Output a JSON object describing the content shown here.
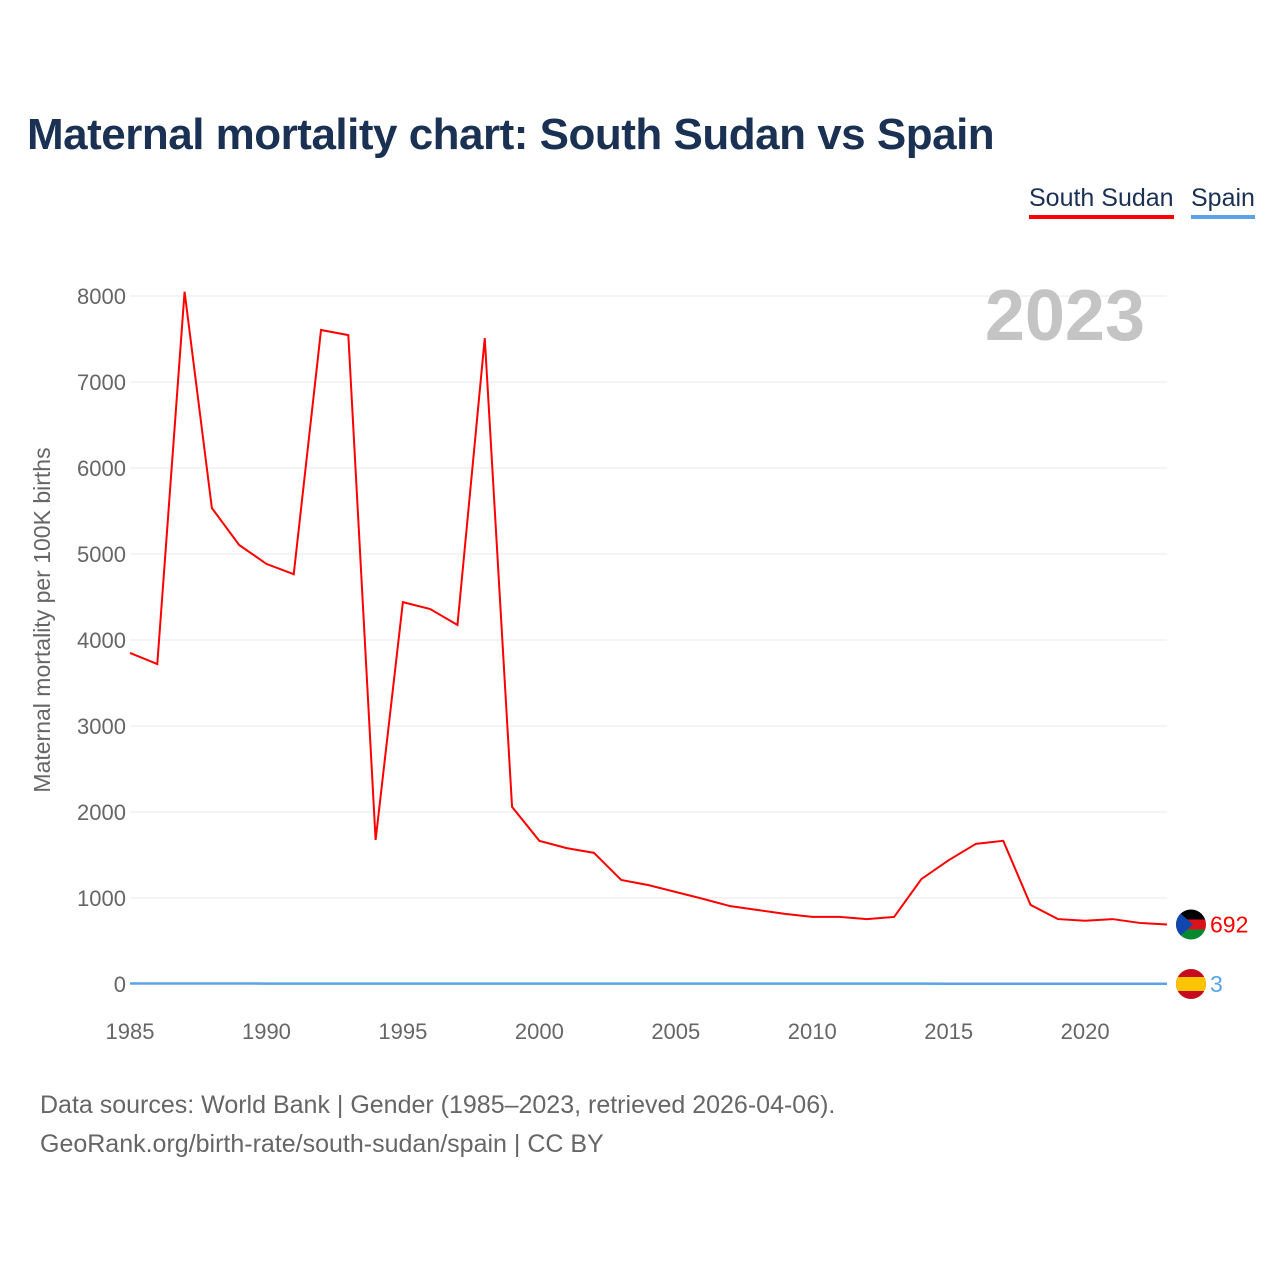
{
  "title": "Maternal mortality chart: South Sudan vs Spain",
  "legend": [
    {
      "label": "South Sudan",
      "color": "#ff0000"
    },
    {
      "label": "Spain",
      "color": "#5ba3e8"
    }
  ],
  "year_label": "2023",
  "footer": {
    "line1": "Data sources: World Bank | Gender (1985–2023, retrieved 2026-04-06).",
    "line2": "GeoRank.org/birth-rate/south-sudan/spain | CC BY"
  },
  "chart_data": {
    "type": "line",
    "title": "Maternal mortality chart: South Sudan vs Spain",
    "xlabel": "",
    "ylabel": "Maternal mortality per 100K births",
    "xlim": [
      1985,
      2023
    ],
    "ylim": [
      0,
      8000
    ],
    "xticks": [
      1985,
      1990,
      1995,
      2000,
      2005,
      2010,
      2015,
      2020
    ],
    "yticks": [
      0,
      1000,
      2000,
      3000,
      4000,
      5000,
      6000,
      7000,
      8000
    ],
    "grid": true,
    "legend_position": "top-right",
    "x": [
      1985,
      1986,
      1987,
      1988,
      1989,
      1990,
      1991,
      1992,
      1993,
      1994,
      1995,
      1996,
      1997,
      1998,
      1999,
      2000,
      2001,
      2002,
      2003,
      2004,
      2005,
      2006,
      2007,
      2008,
      2009,
      2010,
      2011,
      2012,
      2013,
      2014,
      2015,
      2016,
      2017,
      2018,
      2019,
      2020,
      2021,
      2022,
      2023
    ],
    "series": [
      {
        "name": "South Sudan",
        "color": "#ff0000",
        "end_label": "692",
        "values": [
          3850,
          3720,
          8050,
          5535,
          5105,
          4885,
          4765,
          7605,
          7545,
          1675,
          4440,
          4360,
          4175,
          7510,
          2060,
          1665,
          1580,
          1525,
          1210,
          1150,
          1070,
          990,
          905,
          860,
          815,
          780,
          780,
          755,
          780,
          1220,
          1440,
          1630,
          1665,
          920,
          755,
          735,
          755,
          710,
          692
        ]
      },
      {
        "name": "Spain",
        "color": "#5ba3e8",
        "end_label": "3",
        "values": [
          6,
          6,
          6,
          6,
          6,
          5,
          5,
          5,
          5,
          5,
          5,
          5,
          5,
          5,
          5,
          5,
          5,
          5,
          4,
          4,
          4,
          4,
          4,
          4,
          4,
          4,
          4,
          4,
          4,
          4,
          3,
          3,
          3,
          3,
          3,
          3,
          3,
          3,
          3
        ]
      }
    ]
  }
}
